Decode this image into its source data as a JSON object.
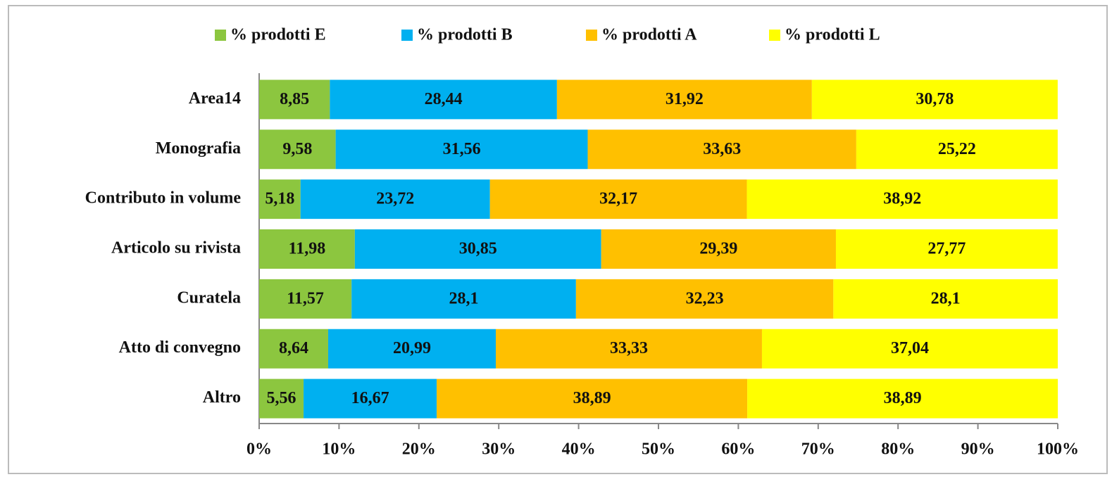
{
  "chart_data": {
    "type": "bar",
    "orientation": "horizontal",
    "stacked": true,
    "categories": [
      "Area14",
      "Monografia",
      "Contributo in volume",
      "Articolo su rivista",
      "Curatela",
      "Atto di convegno",
      "Altro"
    ],
    "series": [
      {
        "name": "% prodotti E",
        "color": "#8cc63f",
        "values": [
          8.85,
          9.58,
          5.18,
          11.98,
          11.57,
          8.64,
          5.56
        ],
        "value_labels": [
          "8,85",
          "9,58",
          "5,18",
          "11,98",
          "11,57",
          "8,64",
          "5,56"
        ]
      },
      {
        "name": "% prodotti B",
        "color": "#00b0f0",
        "values": [
          28.44,
          31.56,
          23.72,
          30.85,
          28.1,
          20.99,
          16.67
        ],
        "value_labels": [
          "28,44",
          "31,56",
          "23,72",
          "30,85",
          "28,1",
          "20,99",
          "16,67"
        ]
      },
      {
        "name": "% prodotti A",
        "color": "#ffc000",
        "values": [
          31.92,
          33.63,
          32.17,
          29.39,
          32.23,
          33.33,
          38.89
        ],
        "value_labels": [
          "31,92",
          "33,63",
          "32,17",
          "29,39",
          "32,23",
          "33,33",
          "38,89"
        ]
      },
      {
        "name": "% prodotti L",
        "color": "#ffff00",
        "values": [
          30.78,
          25.22,
          38.92,
          27.77,
          28.1,
          37.04,
          38.89
        ],
        "value_labels": [
          "30,78",
          "25,22",
          "38,92",
          "27,77",
          "28,1",
          "37,04",
          "38,89"
        ]
      }
    ],
    "xlim": [
      0,
      100
    ],
    "xticks": [
      {
        "value": 0,
        "label": "0%"
      },
      {
        "value": 10,
        "label": "10%"
      },
      {
        "value": 20,
        "label": "20%"
      },
      {
        "value": 30,
        "label": "30%"
      },
      {
        "value": 40,
        "label": "40%"
      },
      {
        "value": 50,
        "label": "50%"
      },
      {
        "value": 60,
        "label": "60%"
      },
      {
        "value": 70,
        "label": "70%"
      },
      {
        "value": 80,
        "label": "80%"
      },
      {
        "value": 90,
        "label": "90%"
      },
      {
        "value": 100,
        "label": "100%"
      }
    ],
    "legend": "top"
  }
}
